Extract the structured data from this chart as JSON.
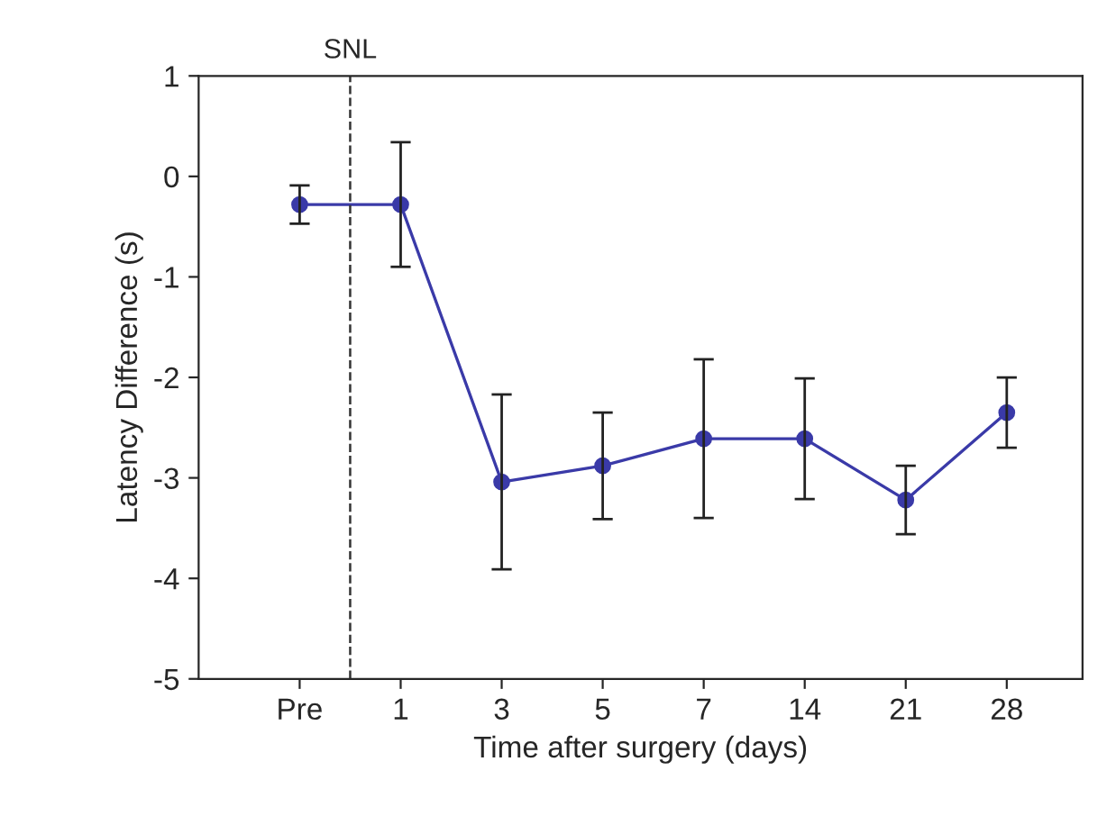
{
  "chart_data": {
    "type": "line",
    "xlabel": "Time after surgery (days)",
    "ylabel": "Latency Difference (s)",
    "categories": [
      "Pre",
      "1",
      "3",
      "5",
      "7",
      "14",
      "21",
      "28"
    ],
    "series": [
      {
        "color": "#3a3aa8",
        "values": [
          -0.28,
          -0.28,
          -3.04,
          -2.88,
          -2.61,
          -2.61,
          -3.22,
          -2.35
        ],
        "errors": [
          0.19,
          0.62,
          0.87,
          0.53,
          0.79,
          0.6,
          0.34,
          0.35
        ]
      }
    ],
    "ylim": [
      -5,
      1
    ],
    "yticks": [
      -5,
      -4,
      -3,
      -2,
      -1,
      0,
      1
    ],
    "annotations": [
      "SNL"
    ],
    "marker": "circle",
    "line_style": "solid",
    "grid": false
  }
}
